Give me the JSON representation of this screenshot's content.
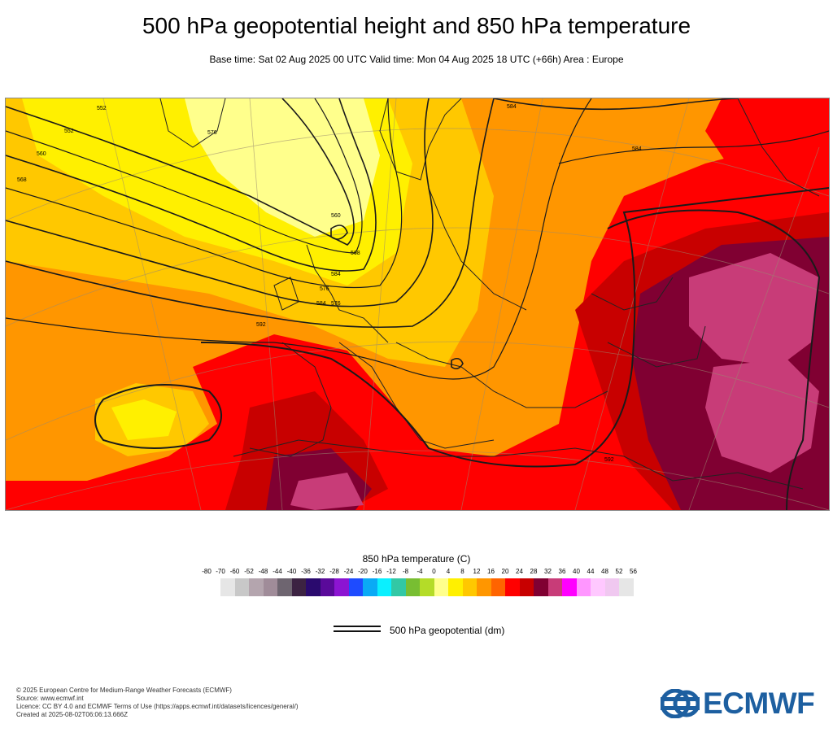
{
  "title": "500 hPa geopotential height and 850 hPa temperature",
  "subtitle": "Base time: Sat 02 Aug 2025 00 UTC Valid time: Mon 04 Aug 2025 18 UTC (+66h) Area : Europe",
  "map": {
    "contour_labels": [
      "552",
      "552",
      "560",
      "568",
      "576",
      "584",
      "592",
      "584",
      "576",
      "568",
      "560",
      "584",
      "576",
      "584",
      "592"
    ]
  },
  "colorbar": {
    "title": "850 hPa temperature (C)",
    "labels": [
      "-80",
      "-70",
      "-60",
      "-52",
      "-48",
      "-44",
      "-40",
      "-36",
      "-32",
      "-28",
      "-24",
      "-20",
      "-16",
      "-12",
      "-8",
      "-4",
      "0",
      "4",
      "8",
      "12",
      "16",
      "20",
      "24",
      "28",
      "32",
      "36",
      "40",
      "44",
      "48",
      "52",
      "56"
    ],
    "colors": [
      "#e6e6e6",
      "#c8c8c8",
      "#b4a5ae",
      "#a08c99",
      "#6e6570",
      "#3c2342",
      "#2a0a6e",
      "#5a0a9a",
      "#8c14d2",
      "#1e4bff",
      "#0aaaf5",
      "#0af0ff",
      "#32c8a5",
      "#78be32",
      "#b4dc28",
      "#ffff8c",
      "#fff000",
      "#ffc800",
      "#ff9600",
      "#ff6400",
      "#ff0000",
      "#c80000",
      "#800032",
      "#c83c78",
      "#ff00ff",
      "#ff96ff",
      "#ffc8ff",
      "#f0c8f0",
      "#e6e6e6"
    ]
  },
  "legend": {
    "geopotential_label": "500 hPa geopotential (dm)"
  },
  "footer": {
    "copyright": "© 2025 European Centre for Medium-Range Weather Forecasts (ECMWF)",
    "source": "Source: www.ecmwf.int",
    "licence": "Licence: CC BY 4.0 and ECMWF Terms of Use (https://apps.ecmwf.int/datasets/licences/general/)",
    "created": "Created at 2025-08-02T06:06:13.666Z"
  },
  "logo": {
    "text": "ECMWF",
    "color": "#1d5fa0"
  }
}
